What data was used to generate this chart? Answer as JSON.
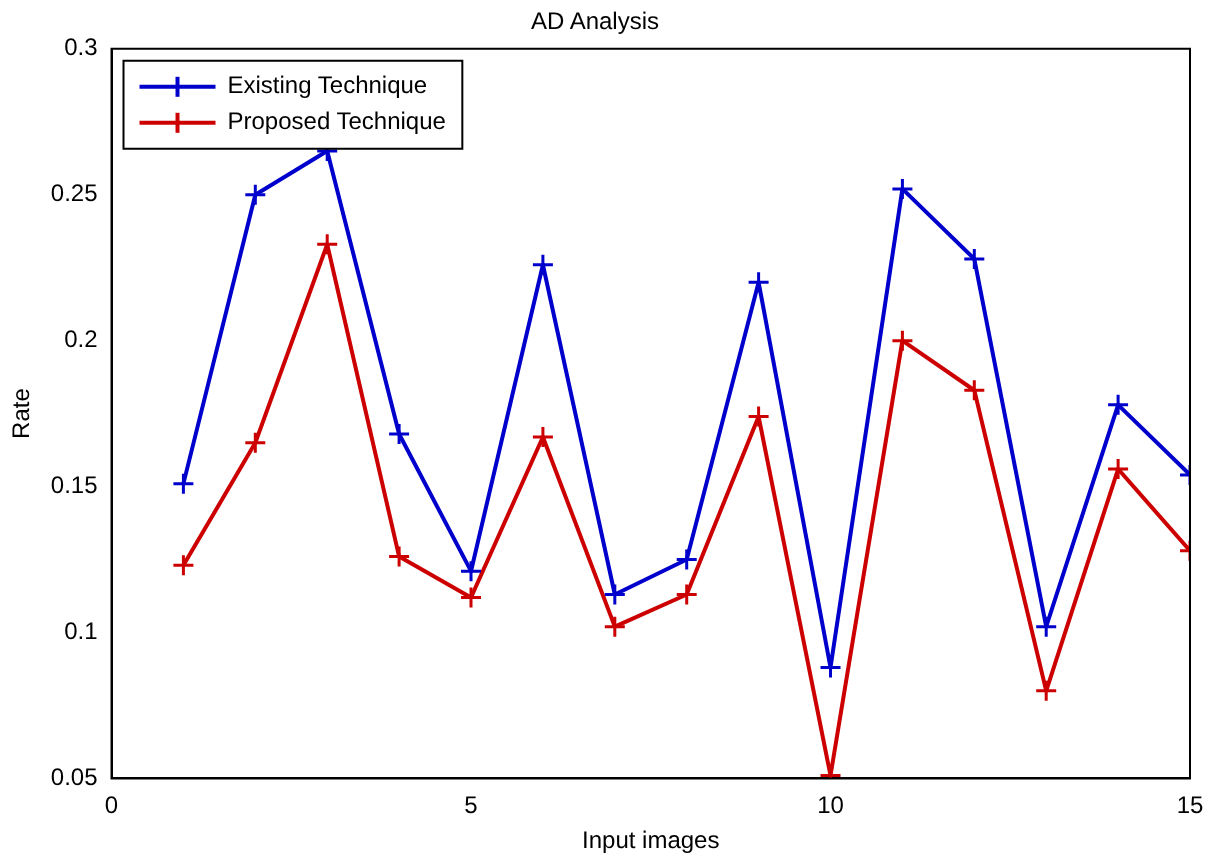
{
  "chart_data": {
    "type": "line",
    "title": "AD Analysis",
    "xlabel": "Input images",
    "ylabel": "Rate",
    "x": [
      1,
      2,
      3,
      4,
      5,
      6,
      7,
      8,
      9,
      10,
      11,
      12,
      13,
      14,
      15
    ],
    "series": [
      {
        "name": "Existing Technique",
        "color": "#0000cc",
        "values": [
          0.151,
          0.25,
          0.265,
          0.168,
          0.121,
          0.226,
          0.113,
          0.125,
          0.22,
          0.088,
          0.252,
          0.228,
          0.102,
          0.178,
          0.154
        ]
      },
      {
        "name": "Proposed Technique",
        "color": "#cc0000",
        "values": [
          0.123,
          0.165,
          0.233,
          0.126,
          0.112,
          0.167,
          0.102,
          0.113,
          0.174,
          0.051,
          0.2,
          0.183,
          0.08,
          0.156,
          0.128
        ]
      }
    ],
    "xlim": [
      0,
      15
    ],
    "xticks": [
      0,
      5,
      10,
      15
    ],
    "ylim": [
      0.05,
      0.3
    ],
    "yticks": [
      0.05,
      0.1,
      0.15,
      0.2,
      0.25,
      0.3
    ],
    "grid": false,
    "legend": "top left",
    "marker": "cross",
    "line_style": "solid"
  }
}
